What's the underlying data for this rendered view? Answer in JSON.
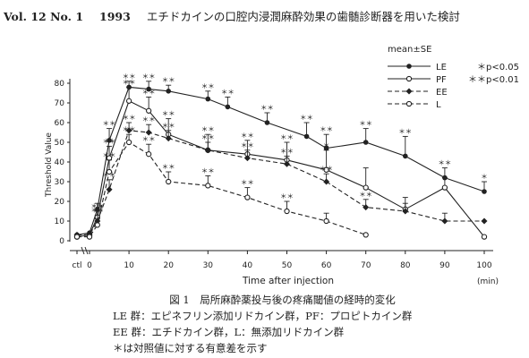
{
  "header": {
    "volume": "Vol. 12 No. 1",
    "year": "1993",
    "title": "エチドカインの口腔内浸潤麻酔効果の歯髄診断器を用いた検討"
  },
  "chart_data": {
    "type": "line",
    "ylabel": "Threshold Value",
    "xlabel": "Time after injection",
    "x_unit": "(min)",
    "xlim": [
      0,
      100
    ],
    "ylim": [
      0,
      80
    ],
    "x_ticks": [
      "ctl",
      "0",
      "10",
      "20",
      "30",
      "40",
      "50",
      "60",
      "70",
      "80",
      "90",
      "100"
    ],
    "y_ticks": [
      "0",
      "10",
      "20",
      "30",
      "40",
      "50",
      "60",
      "70",
      "80"
    ],
    "legend_header": "mean±SE",
    "legend_position": "top-right",
    "significance": [
      "＊p<0.05",
      "＊＊p<0.01"
    ],
    "series": [
      {
        "name": "LE",
        "line": "solid",
        "marker": "filled-circle",
        "x": [
          "ctl",
          0,
          2,
          5,
          10,
          15,
          20,
          30,
          35,
          45,
          55,
          60,
          70,
          80,
          90,
          100
        ],
        "y": [
          3,
          4,
          16,
          51,
          78,
          77,
          76,
          72,
          68,
          60,
          53,
          47,
          50,
          43,
          32,
          25
        ],
        "se": [
          0,
          0,
          3,
          6,
          3,
          4,
          3,
          4,
          5,
          5,
          7,
          7,
          7,
          10,
          5,
          5
        ],
        "markers": [
          "",
          "",
          "",
          "＊＊",
          "＊＊",
          "＊＊",
          "＊＊",
          "＊＊",
          "＊＊",
          "＊＊",
          "＊＊",
          "＊＊",
          "＊＊",
          "＊＊",
          "＊＊",
          "＊"
        ]
      },
      {
        "name": "PF",
        "line": "solid",
        "marker": "open-circle",
        "x": [
          "ctl",
          0,
          2,
          5,
          10,
          15,
          20,
          30,
          40,
          50,
          60,
          70,
          80,
          90,
          100
        ],
        "y": [
          2,
          3,
          12,
          42,
          71,
          66,
          54,
          46,
          44,
          41,
          36,
          27,
          16,
          27,
          2
        ],
        "se": [
          0,
          0,
          3,
          6,
          7,
          7,
          8,
          8,
          7,
          9,
          10,
          10,
          6,
          5,
          0
        ],
        "markers": [
          "",
          "",
          "＊＊",
          "＊＊",
          "＊＊",
          "＊＊",
          "＊＊",
          "＊＊",
          "＊＊",
          "＊＊",
          "＊",
          "",
          "",
          "",
          ""
        ]
      },
      {
        "name": "EE",
        "line": "dashed",
        "marker": "filled-diamond",
        "x": [
          "ctl",
          0,
          2,
          5,
          10,
          15,
          20,
          30,
          40,
          50,
          60,
          70,
          80,
          90,
          100
        ],
        "y": [
          3,
          3,
          10,
          26,
          56,
          55,
          52,
          46,
          42,
          39,
          30,
          17,
          15,
          10,
          10
        ],
        "se": [
          0,
          0,
          3,
          5,
          4,
          4,
          4,
          4,
          4,
          4,
          4,
          4,
          4,
          4,
          0
        ],
        "markers": [
          "",
          "",
          "＊＊",
          "＊＊",
          "＊＊",
          "＊＊",
          "＊＊",
          "＊＊",
          "＊＊",
          "＊＊",
          "＊＊",
          "＊＊",
          "",
          "",
          ""
        ]
      },
      {
        "name": "L",
        "line": "dashed",
        "marker": "open-circle",
        "x": [
          "ctl",
          0,
          2,
          5,
          10,
          15,
          20,
          30,
          40,
          50,
          60,
          70
        ],
        "y": [
          2,
          2,
          8,
          35,
          50,
          44,
          30,
          28,
          22,
          15,
          10,
          3
        ],
        "se": [
          0,
          0,
          3,
          6,
          4,
          5,
          5,
          5,
          5,
          5,
          4,
          0
        ],
        "markers": [
          "",
          "",
          "",
          "＊＊",
          "＊＊",
          "＊＊",
          "＊＊",
          "＊＊",
          "＊＊",
          "＊＊",
          "",
          ""
        ]
      }
    ]
  },
  "caption": {
    "title": "図 1　局所麻酔薬投与後の疼痛閾値の経時的変化",
    "line1": "LE 群：エピネフリン添加リドカイン群，PF：プロピトカイン群",
    "line2": "EE 群：エチドカイン群，L：無添加リドカイン群",
    "line3": "＊は対照値に対する有意差を示す"
  }
}
